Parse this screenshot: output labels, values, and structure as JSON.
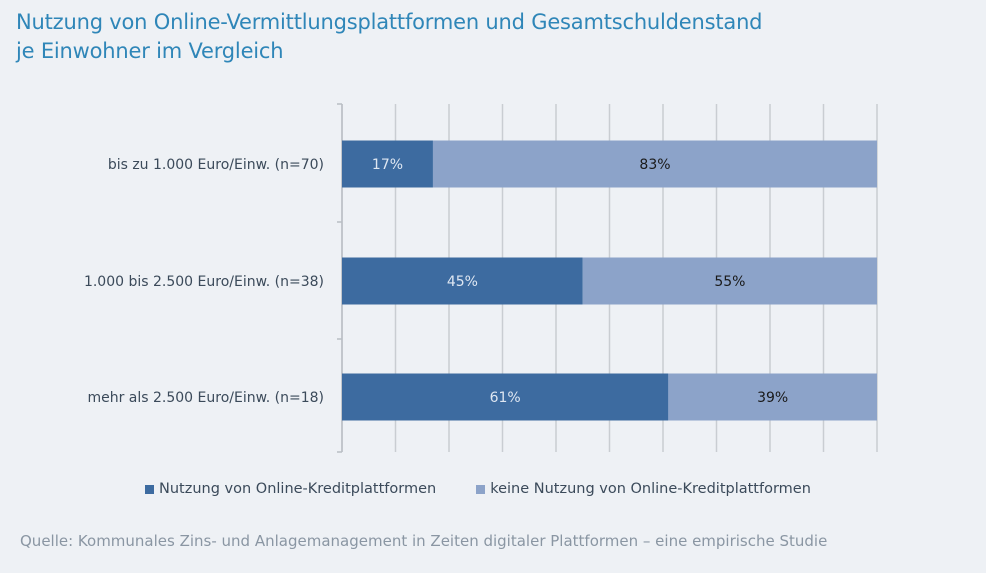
{
  "title": {
    "line1": "Nutzung von Online-Vermittlungsplattformen und Gesamtschuldenstand",
    "line2": "je Einwohner im Vergleich"
  },
  "source": "Quelle: Kommunales Zins- und Anlagemanagement in Zeiten digitaler Plattformen – eine empirische Studie",
  "colors": {
    "nutzung": "#3d6ba0",
    "keine": "#8ca3c9",
    "grid": "#c9cdd2",
    "label_light": "#dfe7f2",
    "label_dark": "#1a1a1a"
  },
  "chart_data": {
    "type": "bar",
    "orientation": "horizontal",
    "stacked": true,
    "percent": true,
    "categories": [
      "bis zu 1.000 Euro/Einw. (n=70)",
      "1.000 bis 2.500 Euro/Einw. (n=38)",
      "mehr als 2.500 Euro/Einw. (n=18)"
    ],
    "series": [
      {
        "name": "Nutzung von Online-Kreditplattformen",
        "values": [
          17,
          45,
          61
        ]
      },
      {
        "name": "keine Nutzung von Online-Kreditplattformen",
        "values": [
          83,
          55,
          39
        ]
      }
    ],
    "xlim": [
      0,
      100
    ],
    "grid": true,
    "legend": "bottom"
  }
}
